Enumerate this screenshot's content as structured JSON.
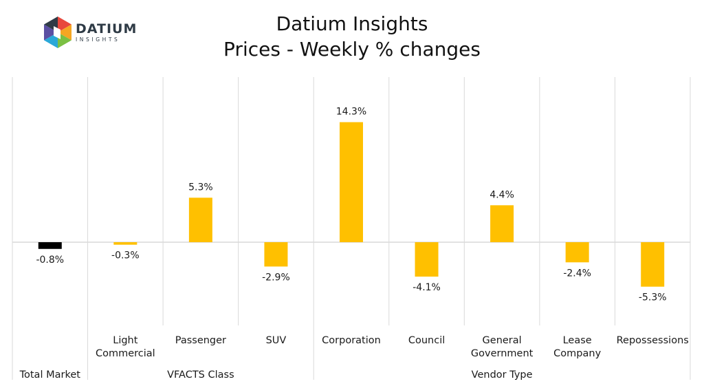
{
  "header": {
    "title": "Datium Insights",
    "subtitle": "Prices - Weekly % changes"
  },
  "logo": {
    "name": "DATIUM",
    "tagline": "INSIGHTS",
    "colors": [
      "#e8473d",
      "#f5a623",
      "#7bc043",
      "#2aa8d8",
      "#5b4fa3",
      "#2f3b46"
    ]
  },
  "chart_data": {
    "type": "bar",
    "categories": [
      "Total Market",
      "Light Commercial",
      "Passenger",
      "SUV",
      "Corporation",
      "Council",
      "General Government",
      "Lease Company",
      "Repossessions"
    ],
    "category_label_lines": [
      [
        ""
      ],
      [
        "Light",
        "Commercial"
      ],
      [
        "Passenger"
      ],
      [
        "SUV"
      ],
      [
        "Corporation"
      ],
      [
        "Council"
      ],
      [
        "General",
        "Government"
      ],
      [
        "Lease",
        "Company"
      ],
      [
        "Repossessions"
      ]
    ],
    "values": [
      -0.8,
      -0.3,
      5.3,
      -2.9,
      14.3,
      -4.1,
      4.4,
      -2.4,
      -5.3
    ],
    "data_labels": [
      "-0.8%",
      "-0.3%",
      "5.3%",
      "-2.9%",
      "14.3%",
      "-4.1%",
      "4.4%",
      "-2.4%",
      "-5.3%"
    ],
    "bar_colors": [
      "#000000",
      "#ffc000",
      "#ffc000",
      "#ffc000",
      "#ffc000",
      "#ffc000",
      "#ffc000",
      "#ffc000",
      "#ffc000"
    ],
    "groups": [
      {
        "label": "Total Market",
        "categories": [
          0,
          0
        ]
      },
      {
        "label": "VFACTS Class",
        "categories": [
          1,
          3
        ]
      },
      {
        "label": "Vendor Type",
        "categories": [
          4,
          8
        ]
      }
    ],
    "ylim": [
      -10,
      19
    ],
    "grid": "vertical separators",
    "legend": "none"
  }
}
